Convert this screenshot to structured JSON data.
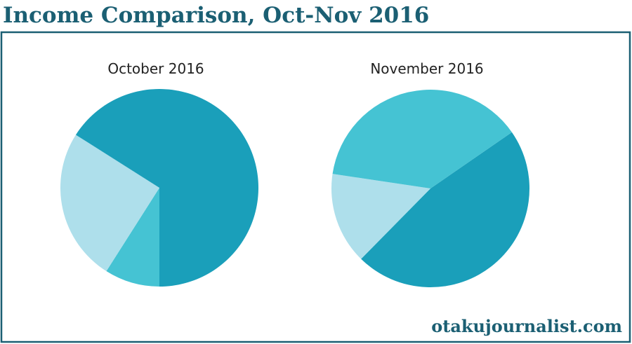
{
  "header": {
    "title": "Income Comparison, Oct-Nov 2016"
  },
  "footer": {
    "text": "otakujournalist.com"
  },
  "chart_data": [
    {
      "type": "pie",
      "title": "October 2016",
      "values": [
        9,
        25,
        66
      ],
      "colors": [
        "#45c3d3",
        "#aedfeb",
        "#1a9fba"
      ]
    },
    {
      "type": "pie",
      "title": "November 2016",
      "values": [
        47,
        15,
        38
      ],
      "colors": [
        "#1a9fba",
        "#aedfeb",
        "#45c3d3"
      ]
    }
  ]
}
